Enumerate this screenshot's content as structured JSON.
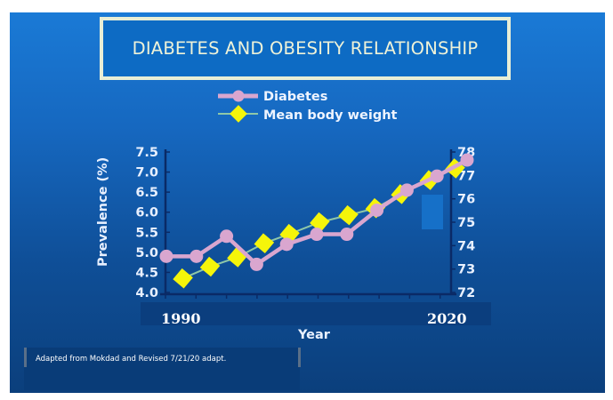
{
  "slide": {
    "title": "DIABETES AND OBESITY RELATIONSHIP",
    "caption": "Adapted from Mokdad and Revised 7/21/20 adapt.",
    "year_start_label": "1990",
    "year_end_label": "2020"
  },
  "colors": {
    "diabetes": "#d9a6cf",
    "weight_fill": "#f5f50a",
    "weight_line": "#8fc8a8",
    "axis": "#0a2a66"
  },
  "chart_data": {
    "type": "line",
    "title": "DIABETES AND OBESITY RELATIONSHIP",
    "xlabel": "Year",
    "ylabel": "Prevalence (%)",
    "x_range_labels": [
      "1990",
      "2020"
    ],
    "legend": [
      "Diabetes",
      "Mean body weight"
    ],
    "legend_position": "top-center",
    "grid": false,
    "left_axis": {
      "ylim": [
        4.0,
        7.5
      ],
      "ticks": [
        "4.0",
        "4.5",
        "5.0",
        "5.5",
        "6.0",
        "6.5",
        "7.0",
        "7.5"
      ]
    },
    "right_axis": {
      "ylim": [
        72,
        78
      ],
      "ticks": [
        "72",
        "73",
        "74",
        "75",
        "76",
        "77",
        "78"
      ]
    },
    "series": [
      {
        "name": "Diabetes",
        "axis": "left",
        "marker": "circle",
        "x": [
          0,
          1,
          2,
          3,
          4,
          5,
          6,
          7,
          8,
          9,
          10
        ],
        "values": [
          4.9,
          4.9,
          5.4,
          4.7,
          5.2,
          5.45,
          5.45,
          6.05,
          6.55,
          6.9,
          7.3
        ]
      },
      {
        "name": "Mean body weight",
        "axis": "right",
        "marker": "diamond",
        "x": [
          0.55,
          1.45,
          2.35,
          3.25,
          4.1,
          5.1,
          6.05,
          6.95,
          7.8,
          8.75,
          9.6
        ],
        "values": [
          72.6,
          73.1,
          73.5,
          74.1,
          74.5,
          75.0,
          75.3,
          75.6,
          76.2,
          76.8,
          77.3
        ]
      }
    ]
  }
}
